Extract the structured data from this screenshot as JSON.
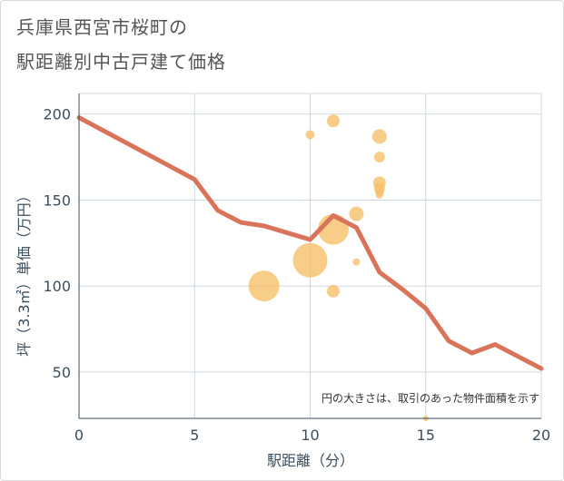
{
  "title": {
    "line1": "兵庫県西宮市桜町の",
    "line2": "駅距離別中古戸建て価格"
  },
  "note": "円の大きさは、取引のあった物件面積を示す",
  "colors": {
    "line": "#d9735a",
    "bubble": "#f5c06a",
    "grid": "#cfd8e0",
    "axis": "#3a4e5c"
  },
  "chart_data": {
    "type": "scatter",
    "xlabel": "駅距離（分）",
    "ylabel": "坪（3.3㎡）単価（万円）",
    "xlim": [
      0,
      20
    ],
    "ylim": [
      23,
      212
    ],
    "x_ticks": [
      0,
      5,
      10,
      15,
      20
    ],
    "y_ticks": [
      50,
      100,
      150,
      200
    ],
    "grid": true,
    "line_series": {
      "x": [
        0,
        5,
        6,
        7,
        8,
        9,
        10,
        11,
        12,
        13,
        14,
        15,
        16,
        17,
        18,
        19,
        20
      ],
      "y": [
        198,
        162,
        144,
        137,
        135,
        131,
        127,
        141,
        134,
        108,
        98,
        87,
        68,
        61,
        66,
        59,
        52
      ]
    },
    "bubbles": [
      {
        "x": 8,
        "y": 100,
        "size": 17
      },
      {
        "x": 10,
        "y": 115,
        "size": 19
      },
      {
        "x": 10,
        "y": 188,
        "size": 5
      },
      {
        "x": 11,
        "y": 196,
        "size": 7
      },
      {
        "x": 11,
        "y": 133,
        "size": 17
      },
      {
        "x": 11,
        "y": 97,
        "size": 7
      },
      {
        "x": 12,
        "y": 142,
        "size": 8
      },
      {
        "x": 12,
        "y": 114,
        "size": 4
      },
      {
        "x": 13,
        "y": 187,
        "size": 8
      },
      {
        "x": 13,
        "y": 175,
        "size": 6
      },
      {
        "x": 13,
        "y": 160,
        "size": 7
      },
      {
        "x": 13,
        "y": 157,
        "size": 6
      },
      {
        "x": 13,
        "y": 155,
        "size": 5
      },
      {
        "x": 13,
        "y": 153,
        "size": 4
      },
      {
        "x": 15,
        "y": 23,
        "size": 3
      }
    ]
  }
}
